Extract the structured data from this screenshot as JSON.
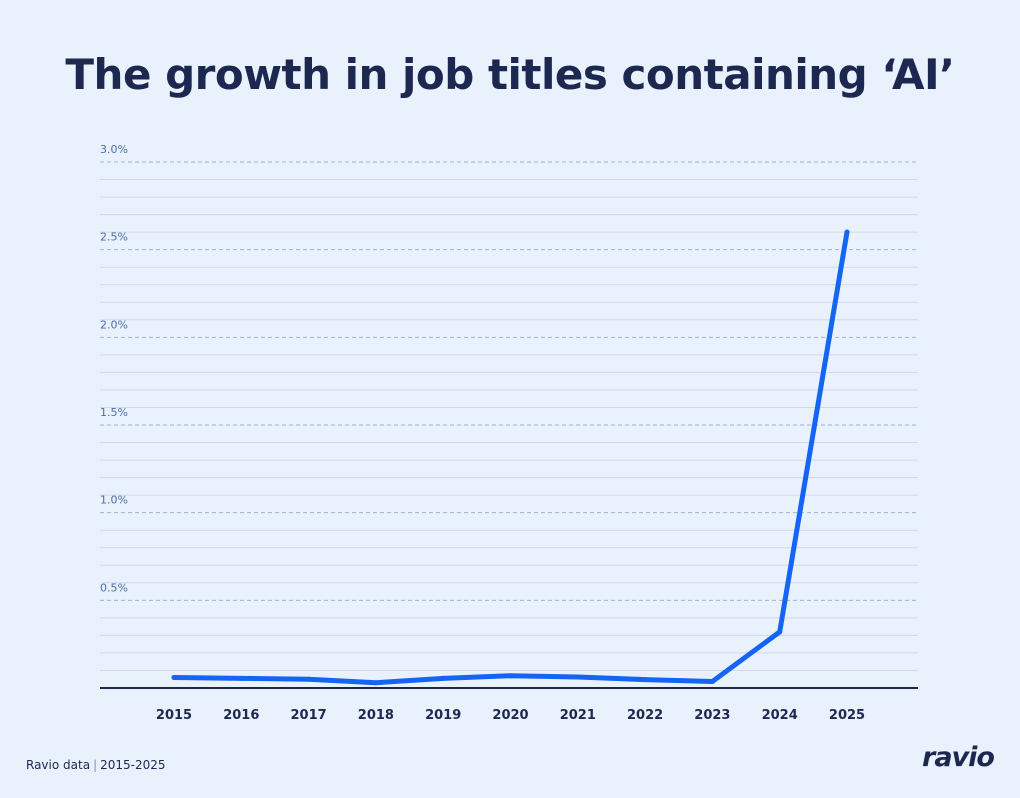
{
  "title": "The growth in job titles containing ‘AI’",
  "footer": {
    "source": "Ravio data",
    "range": "2015-2025"
  },
  "brand": "ravio",
  "colors": {
    "background": "#e9f1fd",
    "line": "#1565f5",
    "text": "#1c2850",
    "tick": "#4b6fa8"
  },
  "chart_data": {
    "type": "line",
    "title": "The growth in job titles containing ‘AI’",
    "xlabel": "",
    "ylabel": "",
    "categories": [
      "2015",
      "2016",
      "2017",
      "2018",
      "2019",
      "2020",
      "2021",
      "2022",
      "2023",
      "2024",
      "2025"
    ],
    "values": [
      0.06,
      0.055,
      0.05,
      0.03,
      0.055,
      0.07,
      0.063,
      0.048,
      0.037,
      0.32,
      2.6
    ],
    "ylim": [
      0,
      3.0
    ],
    "yticks": [
      0.5,
      1.0,
      1.5,
      2.0,
      2.5,
      3.0
    ],
    "ytick_labels": [
      "0.5%",
      "1.0%",
      "1.5%",
      "2.0%",
      "2.5%",
      "3.0%"
    ],
    "grid": true,
    "legend": "none"
  }
}
